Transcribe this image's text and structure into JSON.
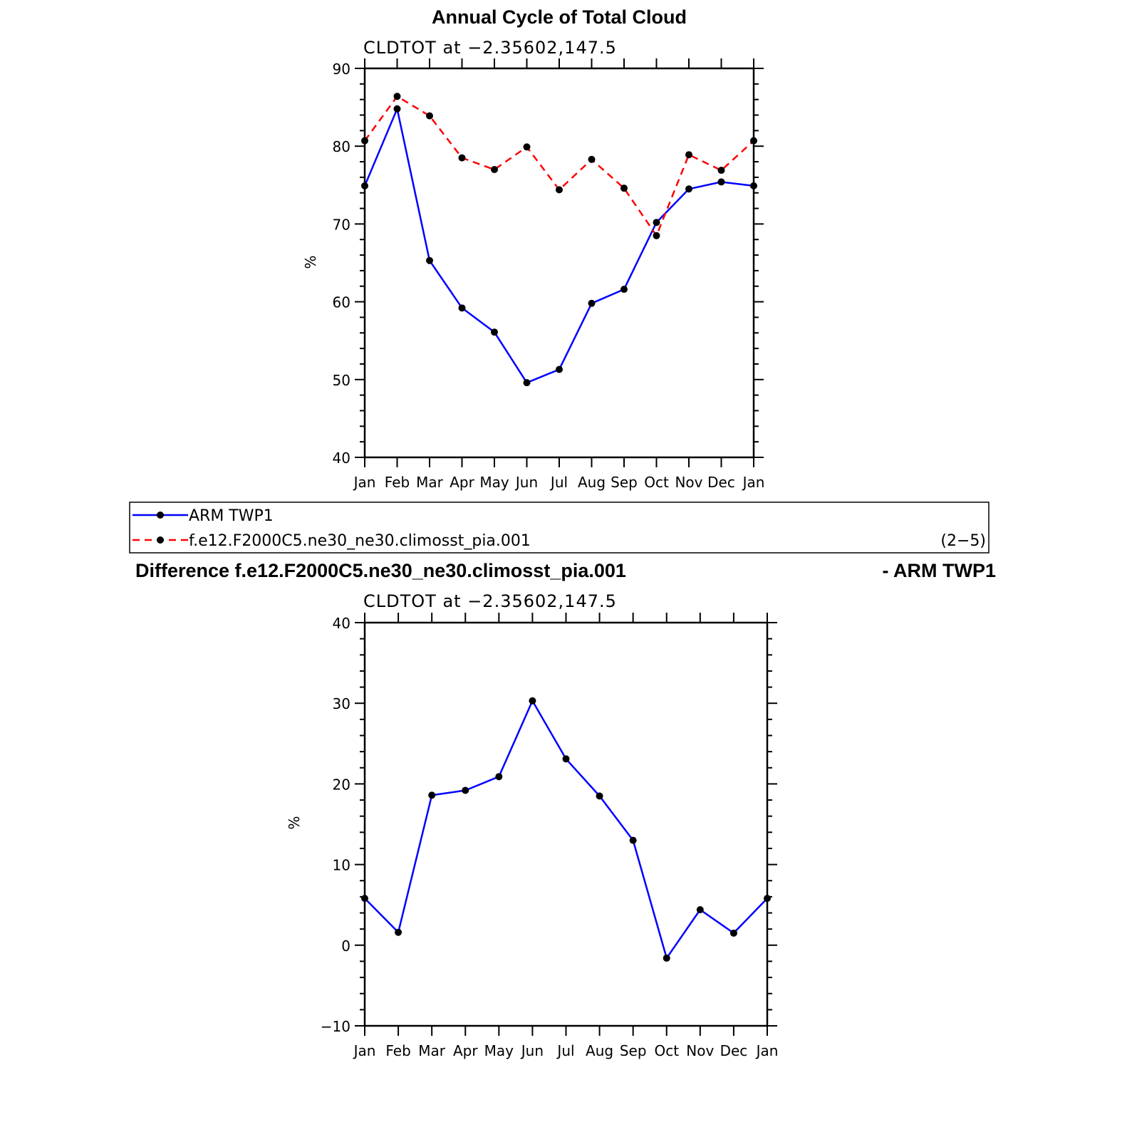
{
  "chart_data": [
    {
      "type": "line",
      "title": "Annual Cycle of Total Cloud",
      "subtitle": "CLDTOT at −2.35602,147.5",
      "xlabel": "",
      "ylabel": "%",
      "ylim": [
        40,
        90
      ],
      "yticks": [
        "40",
        "50",
        "60",
        "70",
        "80",
        "90"
      ],
      "categories": [
        "Jan",
        "Feb",
        "Mar",
        "Apr",
        "May",
        "Jun",
        "Jul",
        "Aug",
        "Sep",
        "Oct",
        "Nov",
        "Dec",
        "Jan"
      ],
      "series": [
        {
          "name": "ARM TWP1",
          "color": "#0000ff",
          "style": "solid",
          "values": [
            74.9,
            84.8,
            65.3,
            59.2,
            56.1,
            49.6,
            51.3,
            59.8,
            61.6,
            70.2,
            74.5,
            75.4,
            74.9
          ]
        },
        {
          "name": "f.e12.F2000C5.ne30_ne30.climosst_pia.001",
          "color": "#ff0000",
          "style": "dashed",
          "values": [
            80.7,
            86.4,
            83.9,
            78.5,
            77.0,
            79.9,
            74.4,
            78.3,
            74.6,
            68.5,
            78.9,
            76.9,
            80.7
          ]
        }
      ]
    },
    {
      "type": "line",
      "title": "Difference f.e12.F2000C5.ne30_ne30.climosst_pia.001",
      "title_right": "- ARM TWP1",
      "subtitle": "CLDTOT at −2.35602,147.5",
      "xlabel": "",
      "ylabel": "%",
      "ylim": [
        -10,
        40
      ],
      "yticks": [
        "−10",
        "0",
        "10",
        "20",
        "30",
        "40"
      ],
      "categories": [
        "Jan",
        "Feb",
        "Mar",
        "Apr",
        "May",
        "Jun",
        "Jul",
        "Aug",
        "Sep",
        "Oct",
        "Nov",
        "Dec",
        "Jan"
      ],
      "series": [
        {
          "name": "Difference",
          "color": "#0000ff",
          "style": "solid",
          "values": [
            5.8,
            1.6,
            18.6,
            19.2,
            20.9,
            30.3,
            23.1,
            18.5,
            13.0,
            -1.6,
            4.4,
            1.5,
            5.8
          ]
        }
      ]
    }
  ],
  "legend": {
    "items": [
      {
        "label": "ARM TWP1"
      },
      {
        "label": "f.e12.F2000C5.ne30_ne30.climosst_pia.001"
      }
    ],
    "panel_label": "(2−5)"
  }
}
